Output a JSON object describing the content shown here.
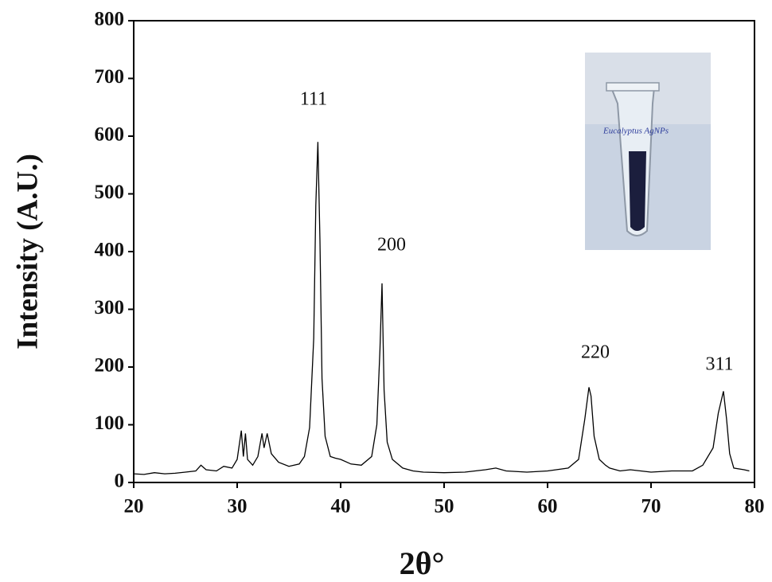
{
  "chart_data": {
    "type": "line",
    "x_label": "2θ°",
    "y_label": "Intensity (A.U.)",
    "annotations": [
      "111",
      "200",
      "220",
      "311"
    ],
    "inset_label": "Eucalyptus AgNPs",
    "xlim": [
      20,
      80
    ],
    "xticks": [
      20,
      30,
      40,
      50,
      60,
      70,
      80
    ],
    "ylim": [
      0,
      800
    ],
    "yticks": [
      0,
      100,
      200,
      300,
      400,
      500,
      600,
      700,
      800
    ],
    "x": [
      20,
      21,
      22,
      23,
      24,
      25,
      26,
      26.5,
      27,
      28,
      28.7,
      29.5,
      30,
      30.4,
      30.6,
      30.8,
      31,
      31.5,
      32,
      32.4,
      32.6,
      32.9,
      33.3,
      34,
      35,
      36,
      36.5,
      37,
      37.4,
      37.6,
      37.8,
      38,
      38.2,
      38.5,
      39,
      39.5,
      40,
      41,
      42,
      43,
      43.5,
      43.8,
      44,
      44.2,
      44.5,
      45,
      46,
      47,
      48,
      50,
      52,
      54,
      55,
      56,
      58,
      60,
      62,
      63,
      63.6,
      64,
      64.2,
      64.5,
      65,
      65.6,
      66,
      67,
      68,
      69,
      70,
      72,
      74,
      75,
      76,
      76.5,
      77,
      77.3,
      77.6,
      78,
      79,
      79.5
    ],
    "series": [
      {
        "color": "#000000",
        "values": [
          15,
          14,
          17,
          15,
          16,
          18,
          20,
          30,
          22,
          20,
          28,
          25,
          40,
          90,
          45,
          85,
          40,
          30,
          45,
          85,
          60,
          85,
          50,
          35,
          28,
          32,
          45,
          95,
          250,
          480,
          590,
          420,
          180,
          80,
          45,
          42,
          40,
          32,
          30,
          45,
          100,
          230,
          345,
          160,
          70,
          40,
          25,
          20,
          18,
          17,
          18,
          22,
          25,
          20,
          18,
          20,
          25,
          40,
          110,
          165,
          150,
          80,
          40,
          30,
          25,
          20,
          22,
          20,
          18,
          20,
          20,
          30,
          60,
          120,
          158,
          110,
          50,
          25,
          22,
          20
        ]
      }
    ]
  }
}
